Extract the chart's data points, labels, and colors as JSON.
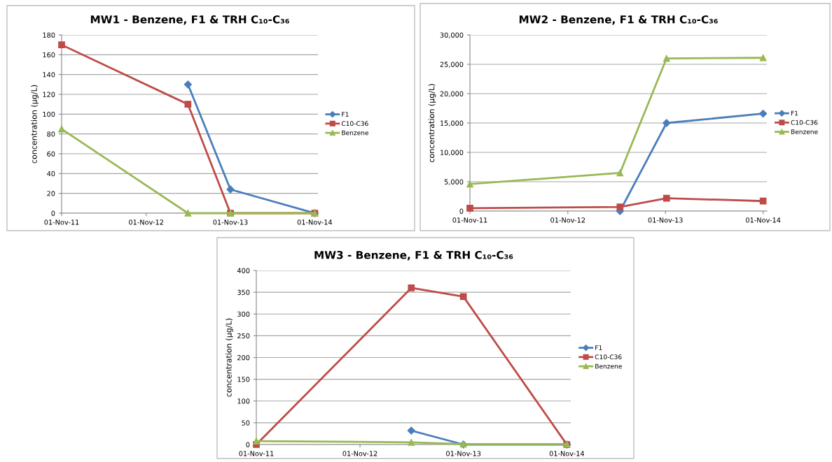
{
  "chart_data": [
    {
      "type": "line",
      "title": "MW1 - Benzene, F1 & TRH C₁₀-C₃₆",
      "ylabel": "concentration (µg/L)",
      "x": [
        "2011-11-01",
        "2013-05-01",
        "2013-11-01",
        "2014-11-01"
      ],
      "series": [
        {
          "name": "F1",
          "color": "#4a7ebb",
          "marker": "diamond",
          "values": [
            null,
            130,
            24,
            0
          ]
        },
        {
          "name": "C10-C36",
          "color": "#be4b48",
          "marker": "square",
          "values": [
            170,
            110,
            0,
            0
          ]
        },
        {
          "name": "Benzene",
          "color": "#98b954",
          "marker": "triangle",
          "values": [
            85,
            0,
            0,
            0
          ]
        }
      ],
      "xlim": [
        "2011-11-01",
        "2014-11-15"
      ],
      "xticks": [
        {
          "value": "2011-11-01",
          "label": "01-Nov-11"
        },
        {
          "value": "2012-11-01",
          "label": "01-Nov-12"
        },
        {
          "value": "2013-11-01",
          "label": "01-Nov-13"
        },
        {
          "value": "2014-11-01",
          "label": "01-Nov-14"
        }
      ],
      "ylim": [
        0,
        180
      ],
      "yticks": [
        0,
        20,
        40,
        60,
        80,
        100,
        120,
        140,
        160,
        180
      ],
      "grid": "y",
      "legend": "right",
      "line_style": "solid"
    },
    {
      "type": "line",
      "title": "MW2 - Benzene, F1 & TRH C₁₀-C₃₆",
      "ylabel": "concentration (µg/L)",
      "x": [
        "2011-11-01",
        "2013-05-15",
        "2013-11-05",
        "2014-11-01"
      ],
      "series": [
        {
          "name": "F1",
          "color": "#4a7ebb",
          "marker": "diamond",
          "values": [
            null,
            0,
            15000,
            16600
          ]
        },
        {
          "name": "C10-C36",
          "color": "#be4b48",
          "marker": "square",
          "values": [
            500,
            700,
            2200,
            1700
          ]
        },
        {
          "name": "Benzene",
          "color": "#98b954",
          "marker": "triangle",
          "values": [
            4600,
            6500,
            26000,
            26100
          ]
        }
      ],
      "xlim": [
        "2011-11-01",
        "2014-11-15"
      ],
      "xticks": [
        {
          "value": "2011-11-01",
          "label": "01-Nov-11"
        },
        {
          "value": "2012-11-01",
          "label": "01-Nov-12"
        },
        {
          "value": "2013-11-01",
          "label": "01-Nov-13"
        },
        {
          "value": "2014-11-01",
          "label": "01-Nov-14"
        }
      ],
      "ylim": [
        0,
        30000
      ],
      "yticks": [
        0,
        {
          "value": 5000,
          "label": "5,000"
        },
        {
          "value": 10000,
          "label": "10,000"
        },
        {
          "value": 15000,
          "label": "15,000"
        },
        {
          "value": 20000,
          "label": "20,000"
        },
        {
          "value": 25000,
          "label": "25,000"
        },
        {
          "value": 30000,
          "label": "30,000"
        }
      ],
      "grid": "y",
      "legend": "right",
      "line_style": "solid"
    },
    {
      "type": "line",
      "title": "MW3 - Benzene, F1 & TRH C₁₀-C₃₆",
      "ylabel": "concentration (µg/L)",
      "x": [
        "2011-11-01",
        "2013-05-01",
        "2013-11-01",
        "2014-11-01"
      ],
      "series": [
        {
          "name": "F1",
          "color": "#4a7ebb",
          "marker": "diamond",
          "values": [
            null,
            32,
            0,
            0
          ]
        },
        {
          "name": "C10-C36",
          "color": "#be4b48",
          "marker": "square",
          "values": [
            0,
            360,
            340,
            0
          ]
        },
        {
          "name": "Benzene",
          "color": "#98b954",
          "marker": "triangle",
          "values": [
            8,
            5,
            1,
            1
          ]
        }
      ],
      "xlim": [
        "2011-11-01",
        "2014-11-15"
      ],
      "xticks": [
        {
          "value": "2011-11-01",
          "label": "01-Nov-11"
        },
        {
          "value": "2012-11-01",
          "label": "01-Nov-12"
        },
        {
          "value": "2013-11-01",
          "label": "01-Nov-13"
        },
        {
          "value": "2014-11-01",
          "label": "01-Nov-14"
        }
      ],
      "ylim": [
        0,
        400
      ],
      "yticks": [
        0,
        50,
        100,
        150,
        200,
        250,
        300,
        350,
        400
      ],
      "grid": "y",
      "legend": "right",
      "line_style": "solid"
    }
  ]
}
